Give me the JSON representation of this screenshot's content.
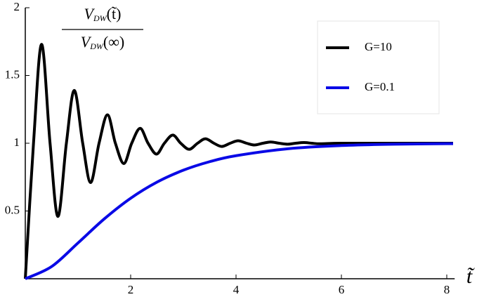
{
  "chart_data": {
    "type": "line",
    "ylabel": {
      "numerator": [
        "V",
        "DW",
        "(t̃)"
      ],
      "denominator": [
        "V",
        "DW",
        "(∞)"
      ]
    },
    "xlabel": "t̃",
    "xlim": [
      0,
      8.15
    ],
    "ylim": [
      0,
      2
    ],
    "xticks": [
      2,
      4,
      6,
      8
    ],
    "yticks": [
      0.5,
      1,
      1.5,
      2
    ],
    "legend": "top-right",
    "series": [
      {
        "name": "G=10",
        "color": "#000000",
        "x": [
          0,
          0.156,
          0.31,
          0.47,
          0.62,
          0.78,
          0.93,
          1.09,
          1.24,
          1.4,
          1.56,
          1.71,
          1.87,
          2.02,
          2.18,
          2.33,
          2.49,
          2.64,
          2.8,
          2.95,
          3.11,
          3.27,
          3.42,
          3.58,
          3.73,
          3.89,
          4.04,
          4.2,
          4.35,
          4.51,
          4.66,
          4.82,
          4.98,
          5.13,
          5.29,
          5.44,
          5.6,
          6,
          7,
          8.12
        ],
        "values": [
          0,
          1,
          1.73,
          1,
          0.46,
          1,
          1.39,
          1,
          0.71,
          1,
          1.21,
          1,
          0.85,
          1,
          1.11,
          1,
          0.92,
          1,
          1.06,
          1,
          0.955,
          1,
          1.033,
          1,
          0.976,
          1,
          1.018,
          1,
          0.987,
          1,
          1.009,
          1,
          0.993,
          1,
          1.005,
          1,
          0.996,
          1,
          1,
          1
        ]
      },
      {
        "name": "G=0.1",
        "color": "#0a0ae6",
        "x": [
          0,
          0.5,
          1,
          1.5,
          2,
          2.5,
          3,
          3.5,
          4,
          5,
          6,
          7,
          8.12
        ],
        "values": [
          0,
          0.09,
          0.264,
          0.442,
          0.594,
          0.713,
          0.801,
          0.864,
          0.908,
          0.96,
          0.983,
          0.993,
          0.997
        ]
      }
    ]
  }
}
